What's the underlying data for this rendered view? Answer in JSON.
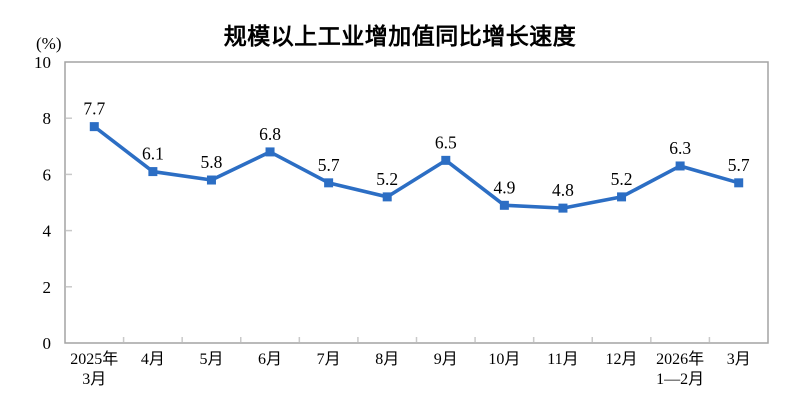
{
  "chart": {
    "colors": {
      "line": "#2c6ec4",
      "marker": "#2c6ec4",
      "frame": "#a3a3a3",
      "tick": "#c9c9c9",
      "label_text": "#000000",
      "background": "#ffffff"
    }
  },
  "chart_data": {
    "type": "line",
    "title": "规模以上工业增加值同比增长速度",
    "ylabel": "(%)",
    "xlabel": "",
    "categories": [
      [
        "2025年",
        "3月"
      ],
      [
        "4月"
      ],
      [
        "5月"
      ],
      [
        "6月"
      ],
      [
        "7月"
      ],
      [
        "8月"
      ],
      [
        "9月"
      ],
      [
        "10月"
      ],
      [
        "11月"
      ],
      [
        "12月"
      ],
      [
        "2026年",
        "1—2月"
      ],
      [
        "3月"
      ]
    ],
    "values": [
      7.7,
      6.1,
      5.8,
      6.8,
      5.7,
      5.2,
      6.5,
      4.9,
      4.8,
      5.2,
      6.3,
      5.7
    ],
    "ylim": [
      0,
      10
    ],
    "yticks": [
      0,
      2,
      4,
      6,
      8,
      10
    ],
    "grid": false,
    "legend": "none",
    "marker": "square",
    "data_labels": true
  }
}
